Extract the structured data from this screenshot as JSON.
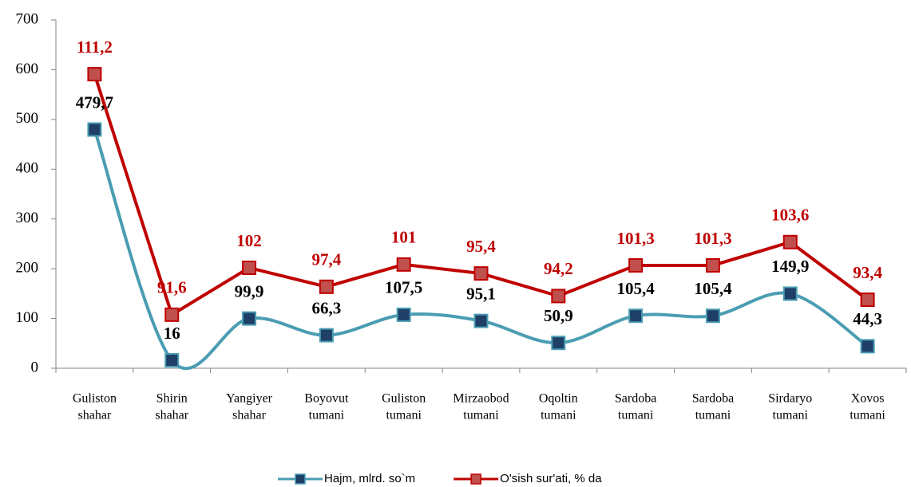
{
  "chart_data": {
    "type": "line",
    "stacked": true,
    "categories": [
      [
        "Guliston",
        "shahar"
      ],
      [
        "Shirin",
        "shahar"
      ],
      [
        "Yangiyer",
        "shahar"
      ],
      [
        "Boyovut",
        "tumani"
      ],
      [
        "Guliston",
        "tumani"
      ],
      [
        "Mirzaobod",
        "tumani"
      ],
      [
        "Oqoltin",
        "tumani"
      ],
      [
        "Sardoba",
        "tumani"
      ],
      [
        "Sardoba",
        "tumani"
      ],
      [
        "Sirdaryo",
        "tumani"
      ],
      [
        "Xovos",
        "tumani"
      ]
    ],
    "series": [
      {
        "name": "Hajm, mlrd. so`m",
        "color": "#4a9db3",
        "marker_color": "#1f3f66",
        "smooth": true,
        "values": [
          479.7,
          16,
          99.9,
          66.3,
          107.5,
          95.1,
          50.9,
          105.4,
          105.4,
          149.9,
          44.3
        ],
        "value_labels": [
          "479,7",
          "16",
          "99,9",
          "66,3",
          "107,5",
          "95,1",
          "50,9",
          "105,4",
          "105,4",
          "149,9",
          "44,3"
        ],
        "label_color": "#000000"
      },
      {
        "name": "O'sish sur'ati, % da",
        "color": "#c00000",
        "marker_color": "#c0504d",
        "smooth": false,
        "values": [
          111.2,
          91.6,
          102,
          97.4,
          101,
          95.4,
          94.2,
          101.3,
          101.3,
          103.6,
          93.4
        ],
        "value_labels": [
          "111,2",
          "91,6",
          "102",
          "97,4",
          "101",
          "95,4",
          "94,2",
          "101,3",
          "101,3",
          "103,6",
          "93,4"
        ],
        "label_color": "#c00000"
      }
    ],
    "ylim": [
      0,
      700
    ],
    "yticks": [
      0,
      100,
      200,
      300,
      400,
      500,
      600,
      700
    ],
    "grid": false,
    "legend": "bottom"
  }
}
